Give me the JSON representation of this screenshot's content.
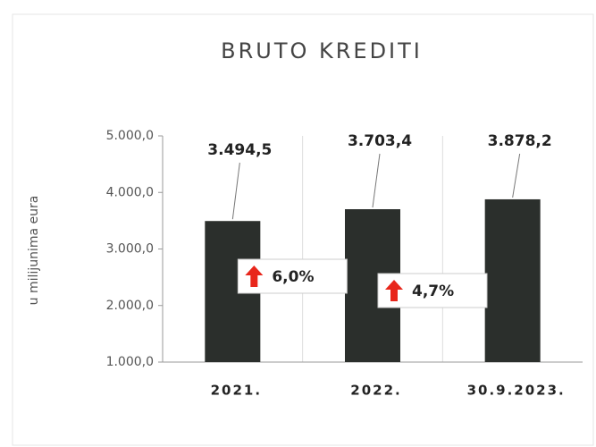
{
  "chart_data": {
    "type": "bar",
    "title": "BRUTO KREDITI",
    "y_label": "u milijunima eura",
    "categories": [
      "2021.",
      "2022.",
      "30.9.2023."
    ],
    "values": [
      3494.5,
      3703.4,
      3878.2
    ],
    "value_labels": [
      "3.494,5",
      "3.703,4",
      "3.878,2"
    ],
    "color": "#2b2f2c",
    "ylim": [
      1000,
      5000
    ],
    "yticks": [
      {
        "value": 1000,
        "label": "1.000,0"
      },
      {
        "value": 2000,
        "label": "2.000,0"
      },
      {
        "value": 3000,
        "label": "3.000,0"
      },
      {
        "value": 4000,
        "label": "4.000,0"
      },
      {
        "value": 5000,
        "label": "5.000,0"
      }
    ],
    "annotations": [
      "6,0%",
      "4,7%"
    ]
  }
}
